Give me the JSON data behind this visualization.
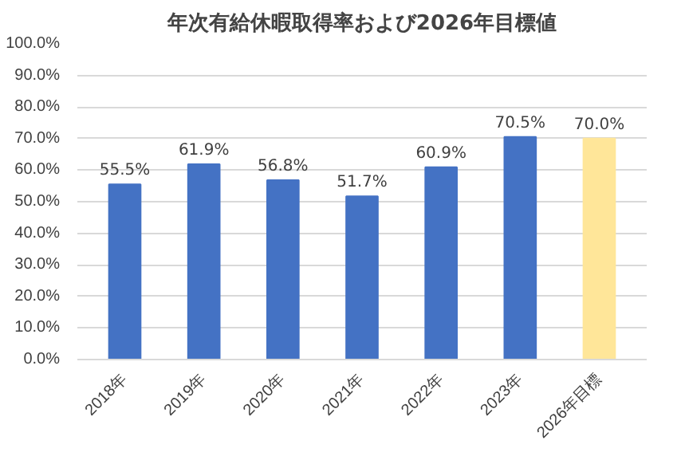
{
  "chart_data": {
    "type": "bar",
    "title": "年次有給休暇取得率および2026年目標値",
    "categories": [
      "2018年",
      "2019年",
      "2020年",
      "2021年",
      "2022年",
      "2023年",
      "2026年目標"
    ],
    "values": [
      55.5,
      61.9,
      56.8,
      51.7,
      60.9,
      70.5,
      70.0
    ],
    "colors": [
      "#4472c4",
      "#4472c4",
      "#4472c4",
      "#4472c4",
      "#4472c4",
      "#4472c4",
      "#ffe699"
    ],
    "value_labels": [
      "55.5%",
      "61.9%",
      "56.8%",
      "51.7%",
      "60.9%",
      "70.5%",
      "70.0%"
    ],
    "ylim": [
      0,
      100
    ],
    "yticks": [
      {
        "value": 0,
        "label": "0.0%"
      },
      {
        "value": 10,
        "label": "10.0%"
      },
      {
        "value": 20,
        "label": "20.0%"
      },
      {
        "value": 30,
        "label": "30.0%"
      },
      {
        "value": 40,
        "label": "40.0%"
      },
      {
        "value": 50,
        "label": "50.0%"
      },
      {
        "value": 60,
        "label": "60.0%"
      },
      {
        "value": 70,
        "label": "70.0%"
      },
      {
        "value": 80,
        "label": "80.0%"
      },
      {
        "value": 90,
        "label": "90.0%"
      },
      {
        "value": 100,
        "label": "100.0%"
      }
    ],
    "grid": "y"
  }
}
